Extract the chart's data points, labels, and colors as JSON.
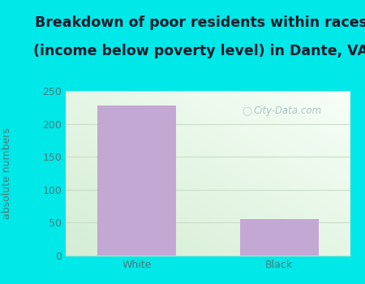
{
  "categories": [
    "White",
    "Black"
  ],
  "values": [
    228,
    55
  ],
  "bar_color": "#c4a8d4",
  "title_line1": "Breakdown of poor residents within races",
  "title_line2": "(income below poverty level) in Dante, VA",
  "ylabel": "absolute numbers",
  "ylim": [
    0,
    250
  ],
  "yticks": [
    0,
    50,
    100,
    150,
    200,
    250
  ],
  "outer_bg_color": "#00e8e8",
  "title_color": "#1a1a2a",
  "tick_color": "#4a7a7a",
  "grid_color": "#c8ddc8",
  "watermark_text": "City-Data.com",
  "watermark_color": "#a0b8c0",
  "title_fontsize": 12.5,
  "label_fontsize": 9,
  "tick_fontsize": 9
}
